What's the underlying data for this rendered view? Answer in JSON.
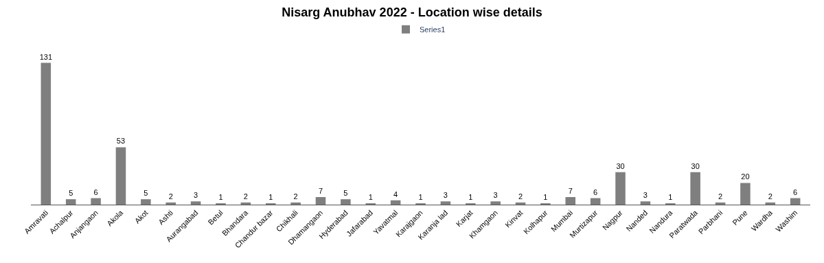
{
  "chart_data": {
    "type": "bar",
    "title": "Nisarg Anubhav 2022 - Location wise details",
    "categories": [
      "Amravati",
      "Achalpur",
      "Anjangaon",
      "Akola",
      "Akot",
      "Ashti",
      "Aurangabad",
      "Betul",
      "Bhandara",
      "Chandur bazar",
      "Chikhali",
      "Dhamangaon",
      "Hyderabad",
      "Jafarabad",
      "Yavatmal",
      "Karajgaon",
      "Karanja lad",
      "Karjat",
      "Khamgaon",
      "Kinvat",
      "Kolhapur",
      "Mumbai",
      "Murtizapur",
      "Nagpur",
      "Nanded",
      "Nandura",
      "Paratwada",
      "Parbhani",
      "Pune",
      "Wardha",
      "Washim"
    ],
    "series": [
      {
        "name": "Series1",
        "color": "#7f7f7f",
        "values": [
          131,
          5,
          6,
          53,
          5,
          2,
          3,
          1,
          2,
          1,
          2,
          7,
          5,
          1,
          4,
          1,
          3,
          1,
          3,
          2,
          1,
          7,
          6,
          30,
          3,
          1,
          30,
          2,
          20,
          2,
          6
        ]
      }
    ],
    "data_labels": true,
    "legend": "top"
  }
}
